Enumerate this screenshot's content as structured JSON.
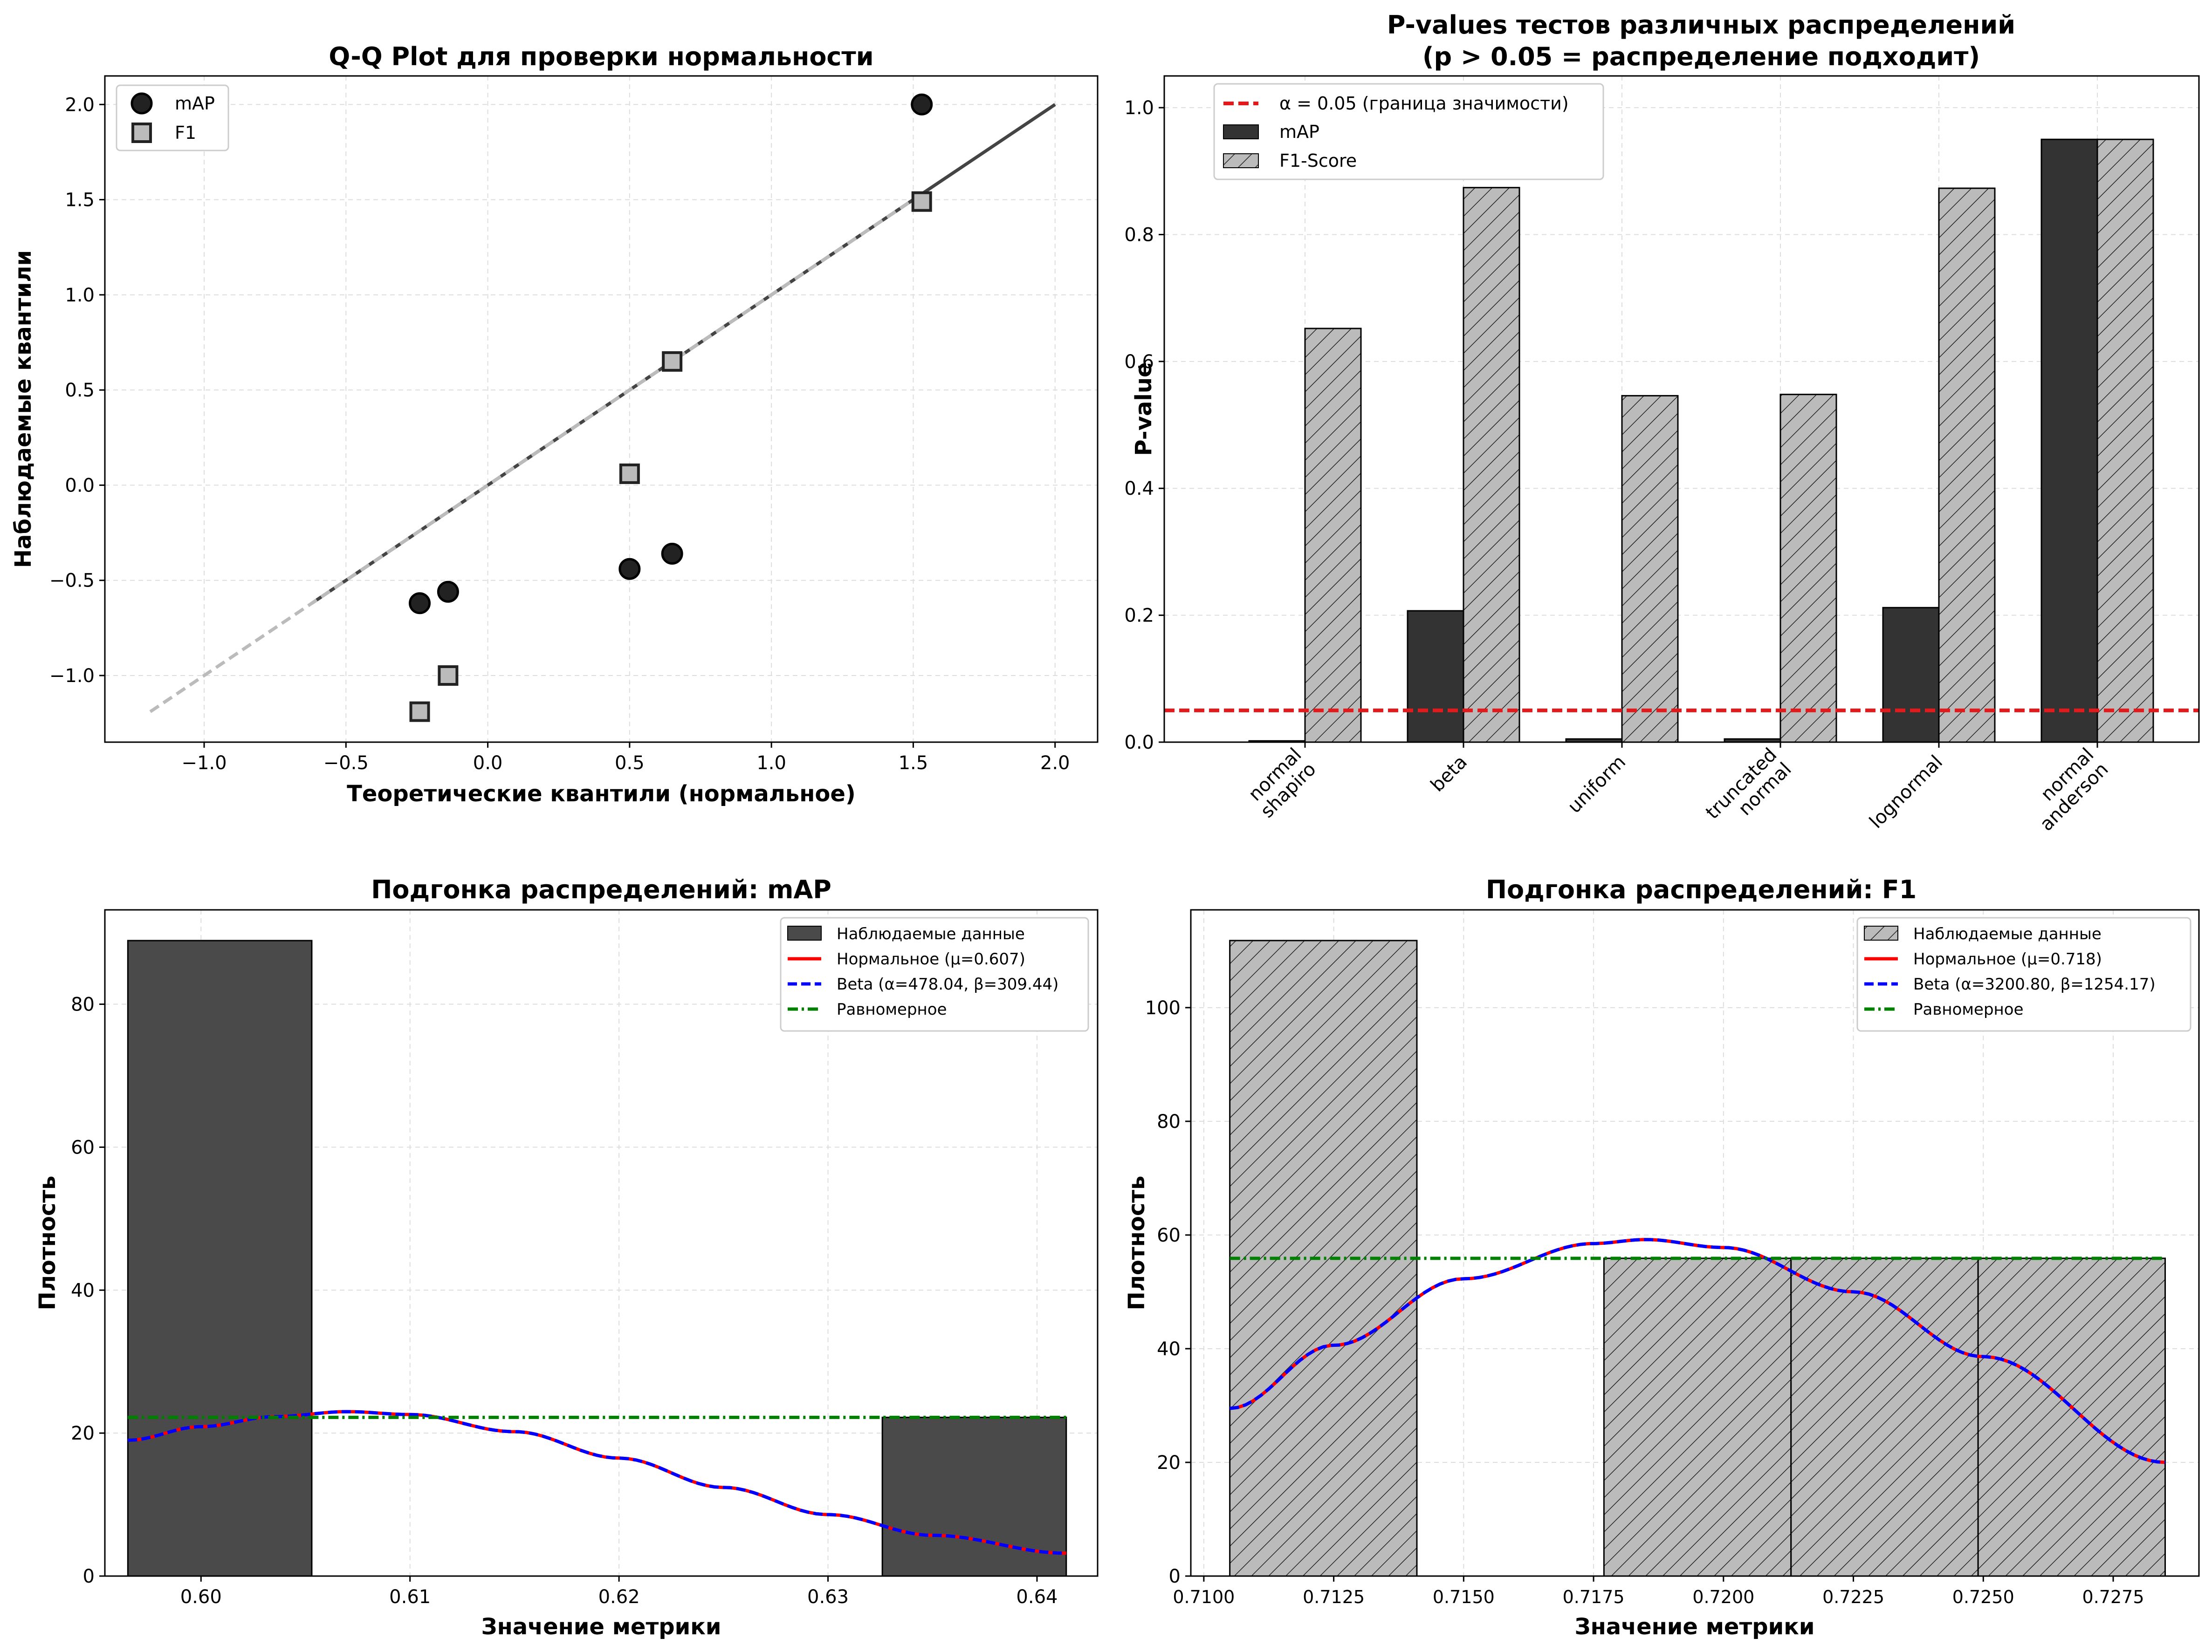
{
  "chart_data": [
    {
      "type": "scatter",
      "title": "Q-Q Plot для проверки нормальности",
      "xlabel": "Теоретические квантили (нормальное)",
      "ylabel": "Наблюдаемые квантили",
      "xlim": [
        -1.35,
        2.15
      ],
      "ylim": [
        -1.35,
        2.15
      ],
      "xticks": [
        -1.0,
        -0.5,
        0.0,
        0.5,
        1.0,
        1.5,
        2.0
      ],
      "yticks": [
        -1.0,
        -0.5,
        0.0,
        0.5,
        1.0,
        1.5,
        2.0
      ],
      "xticklabels": [
        "−1.0",
        "−0.5",
        "0.0",
        "0.5",
        "1.0",
        "1.5",
        "2.0"
      ],
      "yticklabels": [
        "−1.0",
        "−0.5",
        "0.0",
        "0.5",
        "1.0",
        "1.5",
        "2.0"
      ],
      "grid": true,
      "legend_position": "top-left",
      "reference_lines": [
        {
          "x": [
            -0.62,
            2.0
          ],
          "y": [
            -0.62,
            2.0
          ],
          "style": "solid",
          "color": "#444444"
        },
        {
          "x": [
            -1.19,
            1.52
          ],
          "y": [
            -1.19,
            1.52
          ],
          "style": "dashed",
          "color": "#bbbbbb"
        }
      ],
      "series": [
        {
          "name": "mAP",
          "marker": "circle",
          "color": "#222222",
          "x": [
            -0.24,
            -0.14,
            0.5,
            0.65,
            1.53
          ],
          "y": [
            -0.62,
            -0.56,
            -0.44,
            -0.36,
            2.0
          ]
        },
        {
          "name": "F1",
          "marker": "square",
          "color": "#bbbbbb",
          "x": [
            -0.24,
            -0.14,
            0.5,
            0.65,
            1.53
          ],
          "y": [
            -1.19,
            -1.0,
            0.06,
            0.65,
            1.49
          ]
        }
      ]
    },
    {
      "type": "bar",
      "title": "P-values тестов различных распределений",
      "subtitle": "(p > 0.05 = распределение подходит)",
      "xlabel": "",
      "ylabel": "P-value",
      "ylim": [
        0,
        1.05
      ],
      "yticks": [
        0.0,
        0.2,
        0.4,
        0.6,
        0.8,
        1.0
      ],
      "yticklabels": [
        "0.0",
        "0.2",
        "0.4",
        "0.6",
        "0.8",
        "1.0"
      ],
      "grid": true,
      "legend_position": "top-left",
      "categories": [
        "normal\nshapiro",
        "beta",
        "uniform",
        "truncated\nnormal",
        "lognormal",
        "normal\nanderson"
      ],
      "threshold": {
        "value": 0.05,
        "label": "α = 0.05 (граница значимости)",
        "color": "#e31a1c"
      },
      "series": [
        {
          "name": "mAP",
          "color": "#333333",
          "hatch": false,
          "values": [
            0.002,
            0.207,
            0.005,
            0.005,
            0.212,
            0.95
          ]
        },
        {
          "name": "F1-Score",
          "color": "#bbbbbb",
          "hatch": true,
          "values": [
            0.652,
            0.874,
            0.546,
            0.548,
            0.873,
            0.95
          ]
        }
      ]
    },
    {
      "type": "bar",
      "title": "Подгонка распределений: mAP",
      "xlabel": "Значение метрики",
      "ylabel": "Плотность",
      "xlim": [
        0.5954,
        0.6429
      ],
      "ylim": [
        0,
        93.2
      ],
      "xticks": [
        0.6,
        0.61,
        0.62,
        0.63,
        0.64
      ],
      "xticklabels": [
        "0.60",
        "0.61",
        "0.62",
        "0.63",
        "0.64"
      ],
      "yticks": [
        0,
        20,
        40,
        60,
        80
      ],
      "yticklabels": [
        "0",
        "20",
        "40",
        "60",
        "80"
      ],
      "grid": true,
      "legend_position": "top-right",
      "histogram": {
        "name": "Наблюдаемые данные",
        "color": "#4a4a4a",
        "hatch": false,
        "bins": [
          [
            0.5965,
            0.6053,
            88.9
          ],
          [
            0.6053,
            0.6141,
            0
          ],
          [
            0.6141,
            0.6229,
            0
          ],
          [
            0.6229,
            0.6326,
            0
          ],
          [
            0.6326,
            0.6414,
            22.2
          ]
        ]
      },
      "curves": [
        {
          "name": "Нормальное (μ=0.607)",
          "color": "#ff0000",
          "style": "solid",
          "mu": 0.607,
          "peak": 23.0
        },
        {
          "name": "Beta (α=478.04, β=309.44)",
          "color": "#0000ff",
          "style": "dashed",
          "mu": 0.607,
          "peak": 23.0
        },
        {
          "name": "Равномерное",
          "color": "#008000",
          "style": "dashdot",
          "value": 22.2
        }
      ],
      "curve_samples": {
        "x": [
          0.5965,
          0.6,
          0.6035,
          0.607,
          0.61,
          0.615,
          0.62,
          0.625,
          0.63,
          0.635,
          0.6414
        ],
        "y": [
          19.0,
          20.9,
          22.3,
          23.0,
          22.6,
          20.2,
          16.5,
          12.4,
          8.6,
          5.7,
          3.2
        ]
      }
    },
    {
      "type": "bar",
      "title": "Подгонка распределений: F1",
      "xlabel": "Значение метрики",
      "ylabel": "Плотность",
      "xlim": [
        0.70975,
        0.72915
      ],
      "ylim": [
        0,
        117.2
      ],
      "xticks": [
        0.71,
        0.7125,
        0.715,
        0.7175,
        0.72,
        0.7225,
        0.725,
        0.7275
      ],
      "xticklabels": [
        "0.7100",
        "0.7125",
        "0.7150",
        "0.7175",
        "0.7200",
        "0.7225",
        "0.7250",
        "0.7275"
      ],
      "yticks": [
        0,
        20,
        40,
        60,
        80,
        100
      ],
      "yticklabels": [
        "0",
        "20",
        "40",
        "60",
        "80",
        "100"
      ],
      "grid": true,
      "legend_position": "top-right",
      "histogram": {
        "name": "Наблюдаемые данные",
        "color": "#bbbbbb",
        "hatch": true,
        "bins": [
          [
            0.7105,
            0.7141,
            111.8
          ],
          [
            0.7141,
            0.7177,
            0
          ],
          [
            0.7177,
            0.7213,
            55.9
          ],
          [
            0.7213,
            0.7249,
            55.9
          ],
          [
            0.7249,
            0.7285,
            55.9
          ]
        ]
      },
      "curves": [
        {
          "name": "Нормальное (μ=0.718)",
          "color": "#ff0000",
          "style": "solid",
          "mu": 0.718,
          "peak": 59.2
        },
        {
          "name": "Beta (α=3200.80, β=1254.17)",
          "color": "#0000ff",
          "style": "dashed",
          "mu": 0.718,
          "peak": 59.2
        },
        {
          "name": "Равномерное",
          "color": "#008000",
          "style": "dashdot",
          "value": 55.9
        }
      ],
      "curve_samples": {
        "x": [
          0.7105,
          0.7125,
          0.715,
          0.7175,
          0.7185,
          0.72,
          0.7225,
          0.725,
          0.7285
        ],
        "y": [
          29.5,
          40.6,
          52.3,
          58.5,
          59.2,
          57.8,
          50.0,
          38.6,
          20.0
        ]
      }
    }
  ]
}
